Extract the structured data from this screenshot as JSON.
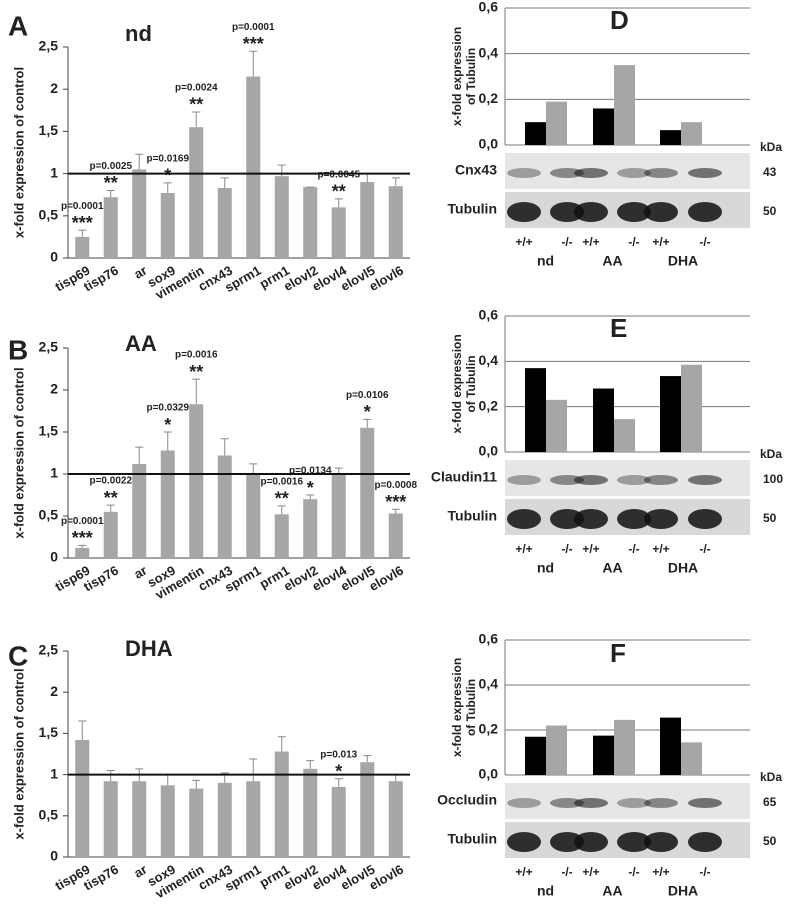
{
  "chart_data": [
    {
      "type": "bar",
      "panel": "A",
      "title": "nd",
      "ylabel": "x-fold expression of control",
      "categories": [
        "tisp69",
        "tisp76",
        "ar",
        "sox9",
        "vimentin",
        "cnx43",
        "sprm1",
        "prm1",
        "elovl2",
        "elovl4",
        "elovl5",
        "elovl6"
      ],
      "values": [
        0.25,
        0.72,
        1.05,
        0.77,
        1.55,
        0.83,
        2.15,
        0.97,
        0.84,
        0.6,
        0.9,
        0.85
      ],
      "errors": [
        0.08,
        0.08,
        0.18,
        0.12,
        0.18,
        0.12,
        0.3,
        0.13,
        0.0,
        0.1,
        0.1,
        0.1
      ],
      "pvalues": [
        "p=0.0001",
        "p=0.0025",
        null,
        "p=0.0169",
        "p=0.0024",
        null,
        "p=0.0001",
        null,
        null,
        "p=0.0045",
        null,
        null
      ],
      "stars": [
        "***",
        "**",
        null,
        "*",
        "**",
        null,
        "***",
        null,
        null,
        "**",
        null,
        null
      ],
      "color": "#a6a6a6",
      "reference_line": 1,
      "ylim": [
        0,
        2.5
      ],
      "yticks": [
        0,
        {
          "value": 0.5,
          "label": "0,5"
        },
        1,
        {
          "value": 1.5,
          "label": "1,5"
        },
        2,
        {
          "value": 2.5,
          "label": "2,5"
        }
      ]
    },
    {
      "type": "bar",
      "panel": "B",
      "title": "AA",
      "ylabel": "x-fold expression of control",
      "categories": [
        "tisp69",
        "tisp76",
        "ar",
        "sox9",
        "vimentin",
        "cnx43",
        "sprm1",
        "prm1",
        "elovl2",
        "elovl4",
        "elovl5",
        "elovl6"
      ],
      "values": [
        0.12,
        0.55,
        1.12,
        1.28,
        1.83,
        1.22,
        1.0,
        0.52,
        0.7,
        1.0,
        1.55,
        0.53
      ],
      "errors": [
        0.03,
        0.08,
        0.2,
        0.22,
        0.3,
        0.2,
        0.12,
        0.1,
        0.05,
        0.07,
        0.1,
        0.05
      ],
      "pvalues": [
        "p=0.0001",
        "p=0.0022",
        null,
        "p=0.0329",
        "p=0.0016",
        null,
        null,
        "p=0.0016",
        "p=0.0134",
        null,
        "p=0.0106",
        "p=0.0008"
      ],
      "stars": [
        "***",
        "**",
        null,
        "*",
        "**",
        null,
        null,
        "**",
        "*",
        null,
        "*",
        "***"
      ],
      "color": "#a6a6a6",
      "reference_line": 1,
      "ylim": [
        0,
        2.5
      ],
      "yticks": [
        0,
        {
          "value": 0.5,
          "label": "0,5"
        },
        1,
        {
          "value": 1.5,
          "label": "1,5"
        },
        2,
        {
          "value": 2.5,
          "label": "2,5"
        }
      ]
    },
    {
      "type": "bar",
      "panel": "C",
      "title": "DHA",
      "ylabel": "x-fold expression of control",
      "categories": [
        "tisp69",
        "tisp76",
        "ar",
        "sox9",
        "vimentin",
        "cnx43",
        "sprm1",
        "prm1",
        "elovl2",
        "elovl4",
        "elovl5",
        "elovl6"
      ],
      "values": [
        1.42,
        0.92,
        0.92,
        0.87,
        0.83,
        0.9,
        0.92,
        1.28,
        1.07,
        0.85,
        1.15,
        0.92
      ],
      "errors": [
        0.23,
        0.13,
        0.15,
        0.13,
        0.1,
        0.12,
        0.27,
        0.18,
        0.1,
        0.1,
        0.08,
        0.08
      ],
      "pvalues": [
        null,
        null,
        null,
        null,
        null,
        null,
        null,
        null,
        null,
        "p=0.013",
        null,
        null
      ],
      "stars": [
        null,
        null,
        null,
        null,
        null,
        null,
        null,
        null,
        null,
        "*",
        null,
        null
      ],
      "color": "#a6a6a6",
      "reference_line": 1,
      "ylim": [
        0,
        2.5
      ],
      "yticks": [
        0,
        {
          "value": 0.5,
          "label": "0,5"
        },
        1,
        {
          "value": 1.5,
          "label": "1,5"
        },
        2,
        {
          "value": 2.5,
          "label": "2,5"
        }
      ]
    },
    {
      "type": "grouped_bar",
      "panel": "D",
      "ylabel": [
        "x-fold expression",
        "of Tubulin"
      ],
      "categories": [
        "nd",
        "AA",
        "DHA"
      ],
      "series": [
        {
          "color": "#000000",
          "values": [
            0.1,
            0.16,
            0.065
          ]
        },
        {
          "color": "#a6a6a6",
          "values": [
            0.19,
            0.35,
            0.1
          ]
        }
      ],
      "ylim": [
        0,
        0.6
      ],
      "grid": true,
      "yticks": [
        {
          "value": 0,
          "label": "0,0"
        },
        {
          "value": 0.2,
          "label": "0,2"
        },
        {
          "value": 0.4,
          "label": "0,4"
        },
        {
          "value": 0.6,
          "label": "0,6"
        }
      ],
      "blot": {
        "unit": "kDa",
        "bands": [
          {
            "name": "Cnx43",
            "size": "43"
          },
          {
            "name": "Tubulin",
            "size": "50"
          }
        ],
        "lanes": [
          "+/+",
          "-/-",
          "+/+",
          "-/-",
          "+/+",
          "-/-"
        ]
      }
    },
    {
      "type": "grouped_bar",
      "panel": "E",
      "ylabel": [
        "x-fold expression",
        "of Tubulin"
      ],
      "categories": [
        "nd",
        "AA",
        "DHA"
      ],
      "series": [
        {
          "color": "#000000",
          "values": [
            0.37,
            0.28,
            0.335
          ]
        },
        {
          "color": "#a6a6a6",
          "values": [
            0.23,
            0.145,
            0.385
          ]
        }
      ],
      "ylim": [
        0,
        0.6
      ],
      "grid": true,
      "yticks": [
        {
          "value": 0,
          "label": "0,0"
        },
        {
          "value": 0.2,
          "label": "0,2"
        },
        {
          "value": 0.4,
          "label": "0,4"
        },
        {
          "value": 0.6,
          "label": "0,6"
        }
      ],
      "blot": {
        "unit": "kDa",
        "bands": [
          {
            "name": "Claudin11",
            "size": "100"
          },
          {
            "name": "Tubulin",
            "size": "50"
          }
        ],
        "lanes": [
          "+/+",
          "-/-",
          "+/+",
          "-/-",
          "+/+",
          "-/-"
        ]
      }
    },
    {
      "type": "grouped_bar",
      "panel": "F",
      "ylabel": [
        "x-fold expression",
        "of Tubulin"
      ],
      "categories": [
        "nd",
        "AA",
        "DHA"
      ],
      "series": [
        {
          "color": "#000000",
          "values": [
            0.17,
            0.175,
            0.255
          ]
        },
        {
          "color": "#a6a6a6",
          "values": [
            0.22,
            0.245,
            0.145
          ]
        }
      ],
      "ylim": [
        0,
        0.6
      ],
      "grid": true,
      "yticks": [
        {
          "value": 0,
          "label": "0,0"
        },
        {
          "value": 0.2,
          "label": "0,2"
        },
        {
          "value": 0.4,
          "label": "0,4"
        },
        {
          "value": 0.6,
          "label": "0,6"
        }
      ],
      "blot": {
        "unit": "kDa",
        "bands": [
          {
            "name": "Occludin",
            "size": "65"
          },
          {
            "name": "Tubulin",
            "size": "50"
          }
        ],
        "lanes": [
          "+/+",
          "-/-",
          "+/+",
          "-/-",
          "+/+",
          "-/-"
        ]
      }
    }
  ]
}
